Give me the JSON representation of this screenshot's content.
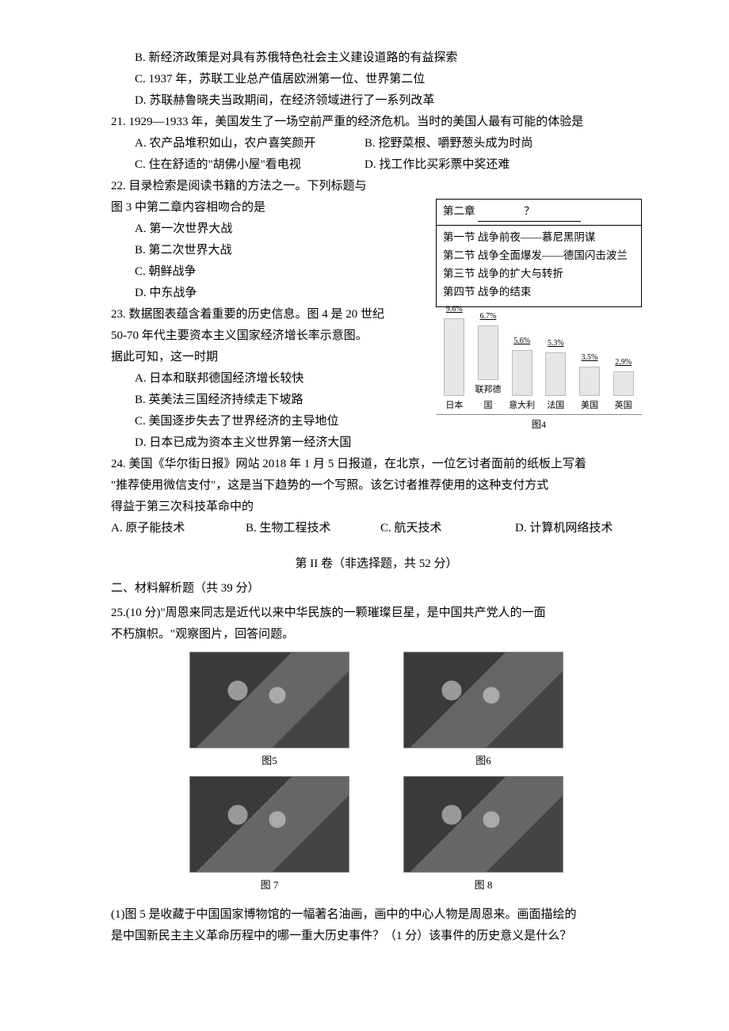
{
  "q20": {
    "opts": {
      "B": "B. 新经济政策是对具有苏俄特色社会主义建设道路的有益探索",
      "C": "C. 1937 年，苏联工业总产值居欧洲第一位、世界第二位",
      "D": "D. 苏联赫鲁晓夫当政期间，在经济领域进行了一系列改革"
    }
  },
  "q21": {
    "stem": "21. 1929—1933 年，美国发生了一场空前严重的经济危机。当时的美国人最有可能的体验是",
    "opts": {
      "A": "A. 农产品堆积如山，农户喜笑颜开",
      "B": "B. 挖野菜根、嚼野葱头成为时尚",
      "C": "C. 住在舒适的\"胡佛小屋\"看电视",
      "D": "D. 找工作比买彩票中奖还难"
    }
  },
  "q22": {
    "stem1": "22. 目录检索是阅读书籍的方法之一。下列标题与",
    "stem2": "图 3 中第二章内容相吻合的是",
    "opts": {
      "A": "A. 第一次世界大战",
      "B": "B. 第二次世界大战",
      "C": "C. 朝鲜战争",
      "D": "D. 中东战争"
    },
    "box": {
      "chapter_label": "第二章",
      "blank": "？",
      "sections": [
        "第一节 战争前夜——慕尼黑阴谋",
        "第二节 战争全面爆发——德国闪击波兰",
        "第三节 战争的扩大与转折",
        "第四节 战争的结束"
      ]
    }
  },
  "q23": {
    "stem1": "23. 数据图表蕴含着重要的历史信息。图 4 是 20 世纪",
    "stem2": "50-70 年代主要资本主义国家经济增长率示意图。",
    "stem3": "据此可知，这一时期",
    "opts": {
      "A": "A. 日本和联邦德国经济增长较快",
      "B": "B. 英美法三国经济持续走下坡路",
      "C": "C. 美国逐步失去了世界经济的主导地位",
      "D": "D. 日本已成为资本主义世界第一经济大国"
    },
    "chart": {
      "type": "bar",
      "caption": "图4",
      "categories": [
        "日本",
        "联邦德国",
        "意大利",
        "法国",
        "美国",
        "英国"
      ],
      "values": [
        9.6,
        6.7,
        5.6,
        5.3,
        3.5,
        2.9
      ],
      "value_labels": [
        "9.6%",
        "6.7%",
        "5.6%",
        "5.3%",
        "3.5%",
        "2.9%"
      ],
      "ylim": [
        0,
        10
      ],
      "bar_color": "#e6e6e6",
      "bar_border": "#bbbbbb",
      "label_fontsize": 11,
      "value_fontsize": 10,
      "background_color": "#ffffff"
    }
  },
  "q24": {
    "stem1": "24. 美国《华尔街日报》网站 2018 年 1 月 5 日报道，在北京，一位乞讨者面前的纸板上写着",
    "stem2": "\"推荐使用微信支付\"，这是当下趋势的一个写照。该乞讨者推荐使用的这种支付方式",
    "stem3": "得益于第三次科技革命中的",
    "opts": {
      "A": "A. 原子能技术",
      "B": "B. 生物工程技术",
      "C": "C. 航天技术",
      "D": "D. 计算机网络技术"
    }
  },
  "partII": {
    "title": "第 II 卷（非选择题，共 52 分）",
    "head": "二、材料解析题（共 39 分）"
  },
  "q25": {
    "stem1": "25.(10 分)\"周恩来同志是近代以来中华民族的一颗璀璨巨星，是中国共产党人的一面",
    "stem2": "不朽旗帜。\"观察图片，回答问题。",
    "figs": {
      "f5": "图5",
      "f6": "图6",
      "f7": "图 7",
      "f8": "图 8"
    },
    "sub1a": "(1)图 5 是收藏于中国国家博物馆的一幅著名油画，画中的中心人物是周恩来。画面描绘的",
    "sub1b": "是中国新民主主义革命历程中的哪一重大历史事件？（1 分）该事件的历史意义是什么？"
  }
}
